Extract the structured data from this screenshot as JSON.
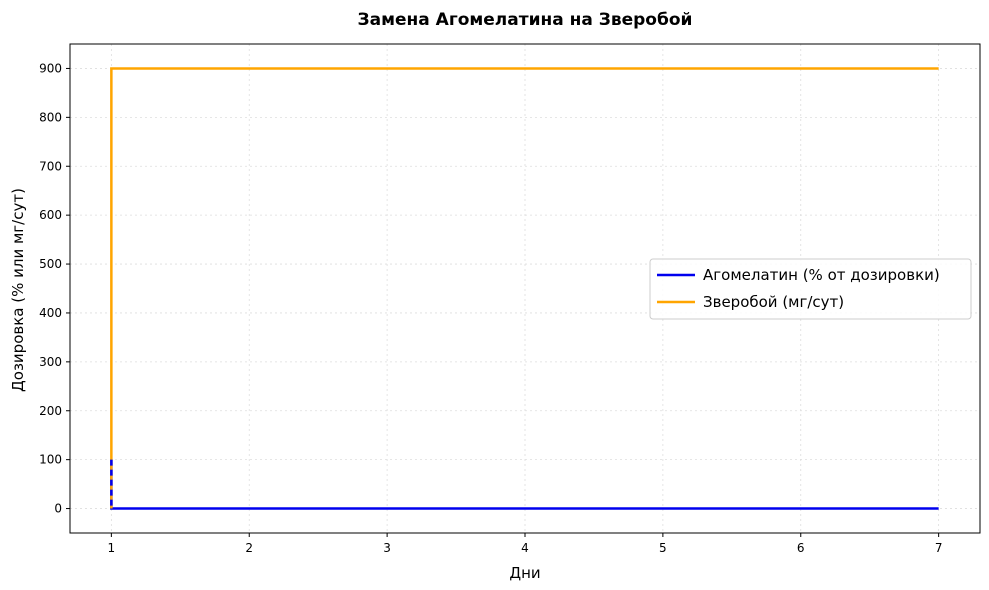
{
  "chart_data": {
    "type": "line",
    "title": "Замена Агомелатина на Зверобой",
    "xlabel": "Дни",
    "ylabel": "Дозировка (% или мг/сут)",
    "xlim": [
      0.7,
      7.3
    ],
    "ylim": [
      -50,
      950
    ],
    "xticks": [
      1,
      2,
      3,
      4,
      5,
      6,
      7
    ],
    "yticks": [
      0,
      100,
      200,
      300,
      400,
      500,
      600,
      700,
      800,
      900
    ],
    "grid": true,
    "legend_position": "center-right",
    "series": [
      {
        "name": "Агомелатин (% от дозировки)",
        "color": "#0000ee",
        "step": "post",
        "x": [
          1,
          1,
          7
        ],
        "y": [
          100,
          0,
          0
        ]
      },
      {
        "name": "Зверобой (мг/сут)",
        "color": "#ffa500",
        "step": "post",
        "x": [
          1,
          1,
          7
        ],
        "y": [
          0,
          900,
          900
        ]
      }
    ]
  }
}
